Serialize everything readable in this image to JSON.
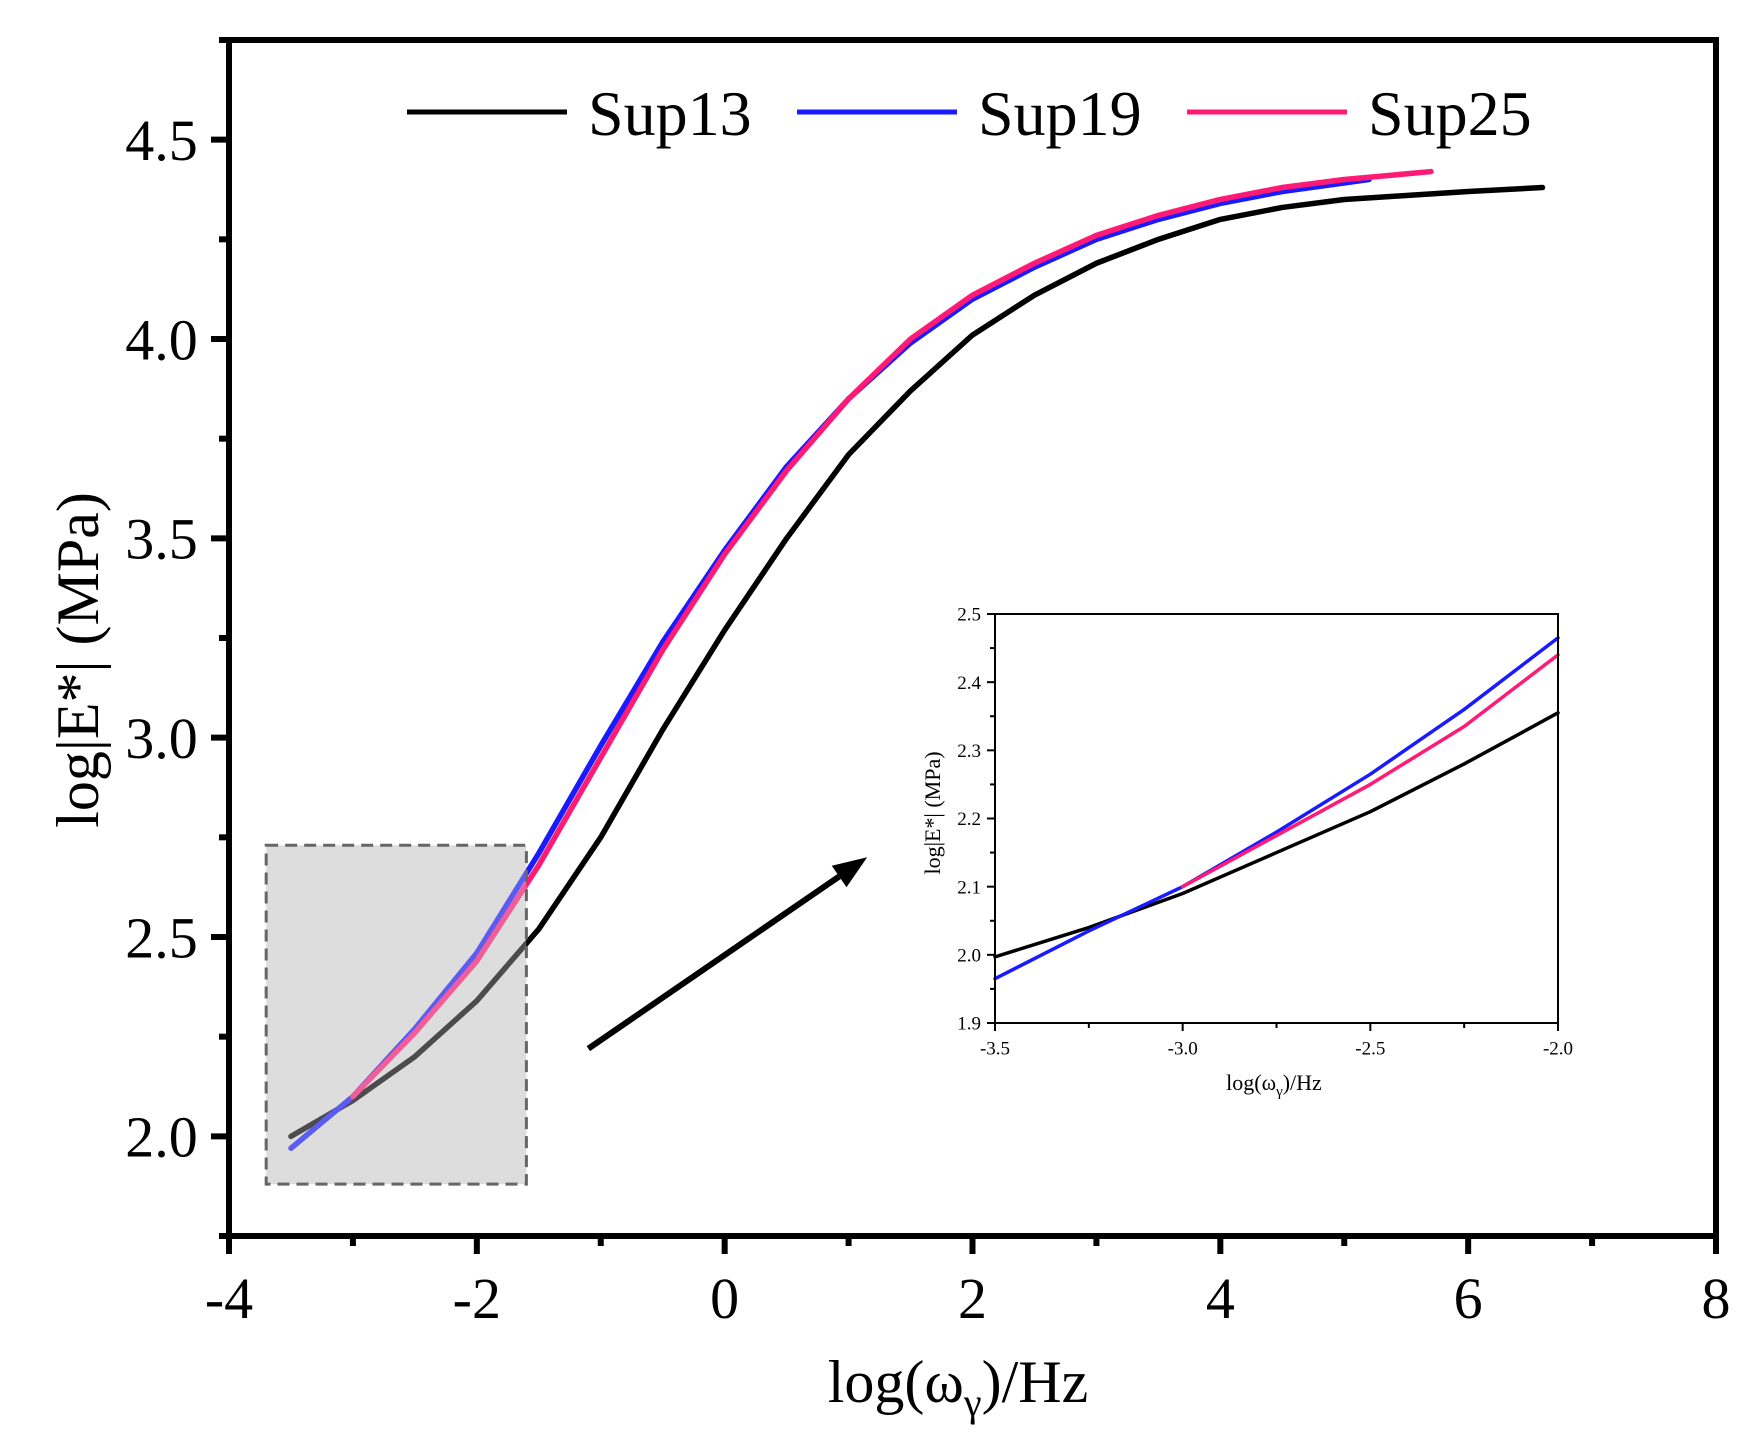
{
  "chart_data": [
    {
      "id": "main",
      "type": "line",
      "title": "",
      "xlabel": "log(ω",
      "xlabel_sub": "γ",
      "xlabel_suffix": ")/Hz",
      "ylabel": "log|E*| (MPa)",
      "xlim": [
        -4,
        8
      ],
      "ylim": [
        1.75,
        4.75
      ],
      "xticks": [
        -4,
        -2,
        0,
        2,
        4,
        6,
        8
      ],
      "xtick_labels": [
        "-4",
        "-2",
        "0",
        "2",
        "4",
        "6",
        "8"
      ],
      "yticks": [
        2.0,
        2.5,
        3.0,
        3.5,
        4.0,
        4.5
      ],
      "ytick_labels": [
        "2.0",
        "2.5",
        "3.0",
        "3.5",
        "4.0",
        "4.5"
      ],
      "grid": false,
      "legend_position": "top",
      "series": [
        {
          "name": "Sup13",
          "color": "#000000",
          "x": [
            -3.5,
            -3.0,
            -2.5,
            -2.0,
            -1.5,
            -1.0,
            -0.5,
            0.0,
            0.5,
            1.0,
            1.5,
            2.0,
            2.5,
            3.0,
            3.5,
            4.0,
            4.5,
            5.0,
            5.5,
            6.0,
            6.6
          ],
          "y": [
            2.0,
            2.09,
            2.2,
            2.34,
            2.52,
            2.75,
            3.02,
            3.27,
            3.5,
            3.71,
            3.87,
            4.01,
            4.11,
            4.19,
            4.25,
            4.3,
            4.33,
            4.35,
            4.36,
            4.37,
            4.38
          ]
        },
        {
          "name": "Sup19",
          "color": "#1a1aff",
          "x": [
            -3.5,
            -3.0,
            -2.5,
            -2.0,
            -1.5,
            -1.0,
            -0.5,
            0.0,
            0.5,
            1.0,
            1.5,
            2.0,
            2.5,
            3.0,
            3.5,
            4.0,
            4.5,
            5.2
          ],
          "y": [
            1.97,
            2.1,
            2.27,
            2.46,
            2.71,
            2.98,
            3.24,
            3.47,
            3.68,
            3.85,
            3.99,
            4.1,
            4.18,
            4.25,
            4.3,
            4.34,
            4.37,
            4.4
          ]
        },
        {
          "name": "Sup25",
          "color": "#ff1a75",
          "x": [
            -3.0,
            -2.5,
            -2.0,
            -1.5,
            -1.0,
            -0.5,
            0.0,
            0.5,
            1.0,
            1.5,
            2.0,
            2.5,
            3.0,
            3.5,
            4.0,
            4.5,
            5.0,
            5.7
          ],
          "y": [
            2.1,
            2.26,
            2.44,
            2.68,
            2.95,
            3.22,
            3.46,
            3.67,
            3.85,
            4.0,
            4.11,
            4.19,
            4.26,
            4.31,
            4.35,
            4.38,
            4.4,
            4.42
          ]
        }
      ],
      "annotations": {
        "zoom_box": {
          "x0": -3.7,
          "x1": -1.6,
          "y0": 1.88,
          "y1": 2.73
        },
        "arrow": {
          "from": [
            -1.1,
            2.22
          ],
          "to": [
            1.15,
            2.7
          ]
        }
      }
    },
    {
      "id": "inset",
      "type": "line",
      "title": "",
      "xlabel": "log(ω",
      "xlabel_sub": "γ",
      "xlabel_suffix": ")/Hz",
      "ylabel": "log|E*| (MPa)",
      "xlim": [
        -3.5,
        -2.0
      ],
      "ylim": [
        1.9,
        2.5
      ],
      "xticks": [
        -3.5,
        -3.0,
        -2.5,
        -2.0
      ],
      "xtick_labels": [
        "-3.5",
        "-3.0",
        "-2.5",
        "-2.0"
      ],
      "yticks": [
        1.9,
        2.0,
        2.1,
        2.2,
        2.3,
        2.4,
        2.5
      ],
      "ytick_labels": [
        "1.9",
        "2.0",
        "2.1",
        "2.2",
        "2.3",
        "2.4",
        "2.5"
      ],
      "grid": false,
      "series": [
        {
          "name": "Sup13",
          "color": "#000000",
          "x": [
            -3.5,
            -3.25,
            -3.0,
            -2.75,
            -2.5,
            -2.25,
            -2.0
          ],
          "y": [
            1.997,
            2.04,
            2.09,
            2.15,
            2.21,
            2.28,
            2.355
          ]
        },
        {
          "name": "Sup19",
          "color": "#1a1aff",
          "x": [
            -3.5,
            -3.25,
            -3.0,
            -2.75,
            -2.5,
            -2.25,
            -2.0
          ],
          "y": [
            1.965,
            2.035,
            2.1,
            2.18,
            2.265,
            2.36,
            2.465
          ]
        },
        {
          "name": "Sup25",
          "color": "#ff1a75",
          "x": [
            -3.0,
            -2.75,
            -2.5,
            -2.25,
            -2.0
          ],
          "y": [
            2.1,
            2.175,
            2.25,
            2.335,
            2.44
          ]
        }
      ]
    }
  ]
}
